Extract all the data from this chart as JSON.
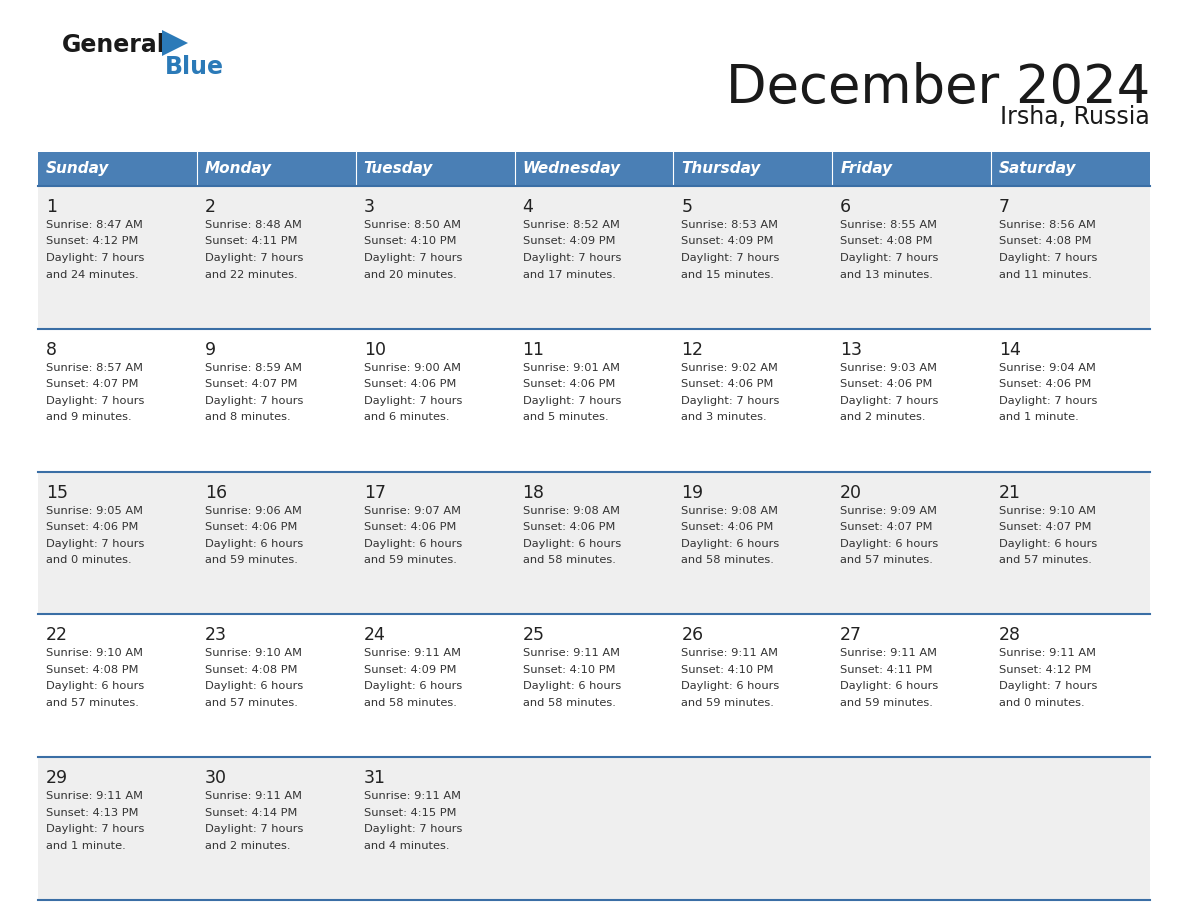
{
  "title": "December 2024",
  "subtitle": "Irsha, Russia",
  "header_color": "#4a7fb5",
  "header_text_color": "#ffffff",
  "days_of_week": [
    "Sunday",
    "Monday",
    "Tuesday",
    "Wednesday",
    "Thursday",
    "Friday",
    "Saturday"
  ],
  "background_color": "#ffffff",
  "cell_bg_light": "#efefef",
  "cell_bg_white": "#ffffff",
  "row_separator_color": "#3a6ea5",
  "text_color": "#333333",
  "day_num_color": "#222222",
  "weeks": [
    [
      {
        "day": 1,
        "sunrise": "8:47 AM",
        "sunset": "4:12 PM",
        "daylight_h": "7 hours",
        "daylight_m": "and 24 minutes."
      },
      {
        "day": 2,
        "sunrise": "8:48 AM",
        "sunset": "4:11 PM",
        "daylight_h": "7 hours",
        "daylight_m": "and 22 minutes."
      },
      {
        "day": 3,
        "sunrise": "8:50 AM",
        "sunset": "4:10 PM",
        "daylight_h": "7 hours",
        "daylight_m": "and 20 minutes."
      },
      {
        "day": 4,
        "sunrise": "8:52 AM",
        "sunset": "4:09 PM",
        "daylight_h": "7 hours",
        "daylight_m": "and 17 minutes."
      },
      {
        "day": 5,
        "sunrise": "8:53 AM",
        "sunset": "4:09 PM",
        "daylight_h": "7 hours",
        "daylight_m": "and 15 minutes."
      },
      {
        "day": 6,
        "sunrise": "8:55 AM",
        "sunset": "4:08 PM",
        "daylight_h": "7 hours",
        "daylight_m": "and 13 minutes."
      },
      {
        "day": 7,
        "sunrise": "8:56 AM",
        "sunset": "4:08 PM",
        "daylight_h": "7 hours",
        "daylight_m": "and 11 minutes."
      }
    ],
    [
      {
        "day": 8,
        "sunrise": "8:57 AM",
        "sunset": "4:07 PM",
        "daylight_h": "7 hours",
        "daylight_m": "and 9 minutes."
      },
      {
        "day": 9,
        "sunrise": "8:59 AM",
        "sunset": "4:07 PM",
        "daylight_h": "7 hours",
        "daylight_m": "and 8 minutes."
      },
      {
        "day": 10,
        "sunrise": "9:00 AM",
        "sunset": "4:06 PM",
        "daylight_h": "7 hours",
        "daylight_m": "and 6 minutes."
      },
      {
        "day": 11,
        "sunrise": "9:01 AM",
        "sunset": "4:06 PM",
        "daylight_h": "7 hours",
        "daylight_m": "and 5 minutes."
      },
      {
        "day": 12,
        "sunrise": "9:02 AM",
        "sunset": "4:06 PM",
        "daylight_h": "7 hours",
        "daylight_m": "and 3 minutes."
      },
      {
        "day": 13,
        "sunrise": "9:03 AM",
        "sunset": "4:06 PM",
        "daylight_h": "7 hours",
        "daylight_m": "and 2 minutes."
      },
      {
        "day": 14,
        "sunrise": "9:04 AM",
        "sunset": "4:06 PM",
        "daylight_h": "7 hours",
        "daylight_m": "and 1 minute."
      }
    ],
    [
      {
        "day": 15,
        "sunrise": "9:05 AM",
        "sunset": "4:06 PM",
        "daylight_h": "7 hours",
        "daylight_m": "and 0 minutes."
      },
      {
        "day": 16,
        "sunrise": "9:06 AM",
        "sunset": "4:06 PM",
        "daylight_h": "6 hours",
        "daylight_m": "and 59 minutes."
      },
      {
        "day": 17,
        "sunrise": "9:07 AM",
        "sunset": "4:06 PM",
        "daylight_h": "6 hours",
        "daylight_m": "and 59 minutes."
      },
      {
        "day": 18,
        "sunrise": "9:08 AM",
        "sunset": "4:06 PM",
        "daylight_h": "6 hours",
        "daylight_m": "and 58 minutes."
      },
      {
        "day": 19,
        "sunrise": "9:08 AM",
        "sunset": "4:06 PM",
        "daylight_h": "6 hours",
        "daylight_m": "and 58 minutes."
      },
      {
        "day": 20,
        "sunrise": "9:09 AM",
        "sunset": "4:07 PM",
        "daylight_h": "6 hours",
        "daylight_m": "and 57 minutes."
      },
      {
        "day": 21,
        "sunrise": "9:10 AM",
        "sunset": "4:07 PM",
        "daylight_h": "6 hours",
        "daylight_m": "and 57 minutes."
      }
    ],
    [
      {
        "day": 22,
        "sunrise": "9:10 AM",
        "sunset": "4:08 PM",
        "daylight_h": "6 hours",
        "daylight_m": "and 57 minutes."
      },
      {
        "day": 23,
        "sunrise": "9:10 AM",
        "sunset": "4:08 PM",
        "daylight_h": "6 hours",
        "daylight_m": "and 57 minutes."
      },
      {
        "day": 24,
        "sunrise": "9:11 AM",
        "sunset": "4:09 PM",
        "daylight_h": "6 hours",
        "daylight_m": "and 58 minutes."
      },
      {
        "day": 25,
        "sunrise": "9:11 AM",
        "sunset": "4:10 PM",
        "daylight_h": "6 hours",
        "daylight_m": "and 58 minutes."
      },
      {
        "day": 26,
        "sunrise": "9:11 AM",
        "sunset": "4:10 PM",
        "daylight_h": "6 hours",
        "daylight_m": "and 59 minutes."
      },
      {
        "day": 27,
        "sunrise": "9:11 AM",
        "sunset": "4:11 PM",
        "daylight_h": "6 hours",
        "daylight_m": "and 59 minutes."
      },
      {
        "day": 28,
        "sunrise": "9:11 AM",
        "sunset": "4:12 PM",
        "daylight_h": "7 hours",
        "daylight_m": "and 0 minutes."
      }
    ],
    [
      {
        "day": 29,
        "sunrise": "9:11 AM",
        "sunset": "4:13 PM",
        "daylight_h": "7 hours",
        "daylight_m": "and 1 minute."
      },
      {
        "day": 30,
        "sunrise": "9:11 AM",
        "sunset": "4:14 PM",
        "daylight_h": "7 hours",
        "daylight_m": "and 2 minutes."
      },
      {
        "day": 31,
        "sunrise": "9:11 AM",
        "sunset": "4:15 PM",
        "daylight_h": "7 hours",
        "daylight_m": "and 4 minutes."
      },
      null,
      null,
      null,
      null
    ]
  ]
}
